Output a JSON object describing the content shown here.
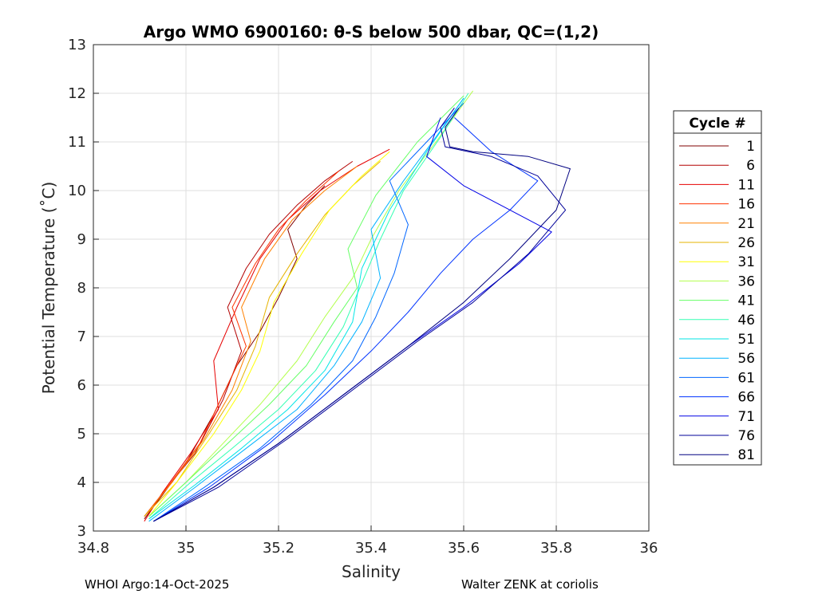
{
  "chart_data": {
    "type": "line",
    "title": "Argo WMO 6900160: θ-S below 500 dbar,  QC=(1,2)",
    "xlabel": "Salinity",
    "ylabel": "Potential Temperature (˚C)",
    "xlim": [
      34.8,
      36
    ],
    "ylim": [
      3,
      13
    ],
    "xticks": [
      34.8,
      35,
      35.2,
      35.4,
      35.6,
      35.8,
      36
    ],
    "yticks": [
      3,
      4,
      5,
      6,
      7,
      8,
      9,
      10,
      11,
      12,
      13
    ],
    "xtick_labels": [
      "34.8",
      "35",
      "35.2",
      "35.4",
      "35.6",
      "35.8",
      "36"
    ],
    "ytick_labels": [
      "3",
      "4",
      "5",
      "6",
      "7",
      "8",
      "9",
      "10",
      "11",
      "12",
      "13"
    ],
    "grid": true,
    "legend": {
      "title": "Cycle #",
      "position": "outside-right",
      "entries": [
        "1",
        "6",
        "11",
        "16",
        "21",
        "26",
        "31",
        "36",
        "41",
        "46",
        "51",
        "56",
        "61",
        "66",
        "71",
        "76",
        "81"
      ],
      "colors": [
        "#800000",
        "#b30000",
        "#e60000",
        "#ff3300",
        "#ff8000",
        "#e6b300",
        "#ffff00",
        "#b3ff4d",
        "#66ff66",
        "#33ffb3",
        "#00e6e6",
        "#00b3ff",
        "#0066ff",
        "#0033ff",
        "#0000e6",
        "#000099",
        "#000080"
      ]
    },
    "series": [
      {
        "name": "1",
        "color": "#800000",
        "x": [
          34.91,
          34.95,
          35.0,
          35.06,
          35.11,
          35.16,
          35.2,
          35.24,
          35.22,
          35.26,
          35.3
        ],
        "y": [
          3.25,
          3.75,
          4.4,
          5.4,
          6.4,
          7.1,
          7.8,
          8.6,
          9.2,
          9.7,
          10.1
        ]
      },
      {
        "name": "6",
        "color": "#b30000",
        "x": [
          34.91,
          34.96,
          35.02,
          35.08,
          35.12,
          35.09,
          35.13,
          35.18,
          35.24,
          35.3,
          35.36
        ],
        "y": [
          3.3,
          3.9,
          4.6,
          5.7,
          6.7,
          7.6,
          8.4,
          9.1,
          9.7,
          10.2,
          10.6
        ]
      },
      {
        "name": "11",
        "color": "#e60000",
        "x": [
          34.91,
          34.95,
          35.01,
          35.07,
          35.06,
          35.11,
          35.16,
          35.22,
          35.29,
          35.37,
          35.44
        ],
        "y": [
          3.2,
          3.8,
          4.6,
          5.5,
          6.5,
          7.6,
          8.6,
          9.4,
          10.0,
          10.5,
          10.85
        ]
      },
      {
        "name": "16",
        "color": "#ff3300",
        "x": [
          34.91,
          34.96,
          35.03,
          35.08,
          35.13,
          35.1,
          35.15,
          35.2,
          35.26,
          35.33
        ],
        "y": [
          3.3,
          3.9,
          4.8,
          5.8,
          6.8,
          7.6,
          8.5,
          9.2,
          9.8,
          10.4
        ]
      },
      {
        "name": "21",
        "color": "#ff8000",
        "x": [
          34.91,
          34.97,
          35.04,
          35.1,
          35.14,
          35.12,
          35.17,
          35.23,
          35.3,
          35.37
        ],
        "y": [
          3.3,
          4.0,
          4.9,
          5.9,
          6.9,
          7.6,
          8.6,
          9.4,
          10.0,
          10.5
        ]
      },
      {
        "name": "26",
        "color": "#e6b300",
        "x": [
          34.91,
          34.98,
          35.05,
          35.11,
          35.15,
          35.18,
          35.24,
          35.3,
          35.36,
          35.42
        ],
        "y": [
          3.3,
          4.0,
          5.0,
          5.9,
          6.8,
          7.8,
          8.7,
          9.5,
          10.1,
          10.6
        ]
      },
      {
        "name": "31",
        "color": "#ffff00",
        "x": [
          34.92,
          34.98,
          35.06,
          35.12,
          35.16,
          35.19,
          35.25,
          35.31,
          35.38,
          35.44
        ],
        "y": [
          3.3,
          4.0,
          5.0,
          5.9,
          6.7,
          7.7,
          8.7,
          9.6,
          10.3,
          10.8
        ]
      },
      {
        "name": "36",
        "color": "#b3ff4d",
        "x": [
          34.92,
          35.0,
          35.08,
          35.16,
          35.24,
          35.3,
          35.36,
          35.4,
          35.46,
          35.54,
          35.62
        ],
        "y": [
          3.3,
          4.0,
          4.8,
          5.6,
          6.5,
          7.4,
          8.2,
          9.0,
          10.0,
          11.0,
          12.05
        ]
      },
      {
        "name": "41",
        "color": "#66ff66",
        "x": [
          34.92,
          35.0,
          35.09,
          35.18,
          35.26,
          35.32,
          35.37,
          35.35,
          35.41,
          35.5,
          35.6
        ],
        "y": [
          3.3,
          4.0,
          4.8,
          5.6,
          6.4,
          7.3,
          8.0,
          8.8,
          9.9,
          11.0,
          11.95
        ]
      },
      {
        "name": "46",
        "color": "#33ffb3",
        "x": [
          34.92,
          35.01,
          35.1,
          35.2,
          35.28,
          35.34,
          35.38,
          35.42,
          35.47,
          35.55,
          35.61
        ],
        "y": [
          3.25,
          4.0,
          4.7,
          5.5,
          6.3,
          7.2,
          8.1,
          9.0,
          10.0,
          11.1,
          12.0
        ]
      },
      {
        "name": "51",
        "color": "#00e6e6",
        "x": [
          34.92,
          35.02,
          35.12,
          35.22,
          35.3,
          35.36,
          35.38,
          35.44,
          35.52,
          35.6
        ],
        "y": [
          3.25,
          3.95,
          4.7,
          5.5,
          6.3,
          7.3,
          8.4,
          9.6,
          10.8,
          11.9
        ]
      },
      {
        "name": "56",
        "color": "#00b3ff",
        "x": [
          34.92,
          35.02,
          35.13,
          35.24,
          35.32,
          35.38,
          35.42,
          35.4,
          35.47,
          35.54,
          35.6
        ],
        "y": [
          3.2,
          3.9,
          4.7,
          5.5,
          6.4,
          7.3,
          8.2,
          9.2,
          10.2,
          11.1,
          11.9
        ]
      },
      {
        "name": "61",
        "color": "#0066ff",
        "x": [
          34.93,
          35.04,
          35.16,
          35.27,
          35.36,
          35.41,
          35.45,
          35.48,
          35.44,
          35.52,
          35.6
        ],
        "y": [
          3.2,
          3.9,
          4.7,
          5.6,
          6.5,
          7.4,
          8.3,
          9.3,
          10.2,
          11.0,
          11.8
        ]
      },
      {
        "name": "66",
        "color": "#0033ff",
        "x": [
          34.93,
          35.05,
          35.18,
          35.3,
          35.4,
          35.48,
          35.55,
          35.62,
          35.7,
          35.76,
          35.66,
          35.58
        ],
        "y": [
          3.2,
          3.9,
          4.8,
          5.8,
          6.7,
          7.5,
          8.3,
          9.0,
          9.6,
          10.2,
          10.8,
          11.5
        ]
      },
      {
        "name": "71",
        "color": "#0000e6",
        "x": [
          34.93,
          35.06,
          35.2,
          35.34,
          35.48,
          35.6,
          35.72,
          35.79,
          35.7,
          35.6,
          35.52,
          35.55
        ],
        "y": [
          3.2,
          3.9,
          4.8,
          5.8,
          6.8,
          7.6,
          8.5,
          9.15,
          9.6,
          10.1,
          10.7,
          11.5
        ]
      },
      {
        "name": "76",
        "color": "#000099",
        "x": [
          34.93,
          35.07,
          35.22,
          35.36,
          35.5,
          35.62,
          35.74,
          35.82,
          35.76,
          35.66,
          35.56,
          35.55,
          35.58
        ],
        "y": [
          3.2,
          3.9,
          4.9,
          5.9,
          6.9,
          7.7,
          8.7,
          9.6,
          10.3,
          10.7,
          10.9,
          11.3,
          11.7
        ]
      },
      {
        "name": "81",
        "color": "#000080",
        "x": [
          34.93,
          35.06,
          35.2,
          35.34,
          35.48,
          35.6,
          35.7,
          35.8,
          35.83,
          35.74,
          35.62,
          35.57,
          35.56,
          35.59
        ],
        "y": [
          3.2,
          3.9,
          4.8,
          5.8,
          6.8,
          7.7,
          8.6,
          9.6,
          10.45,
          10.7,
          10.8,
          10.9,
          11.3,
          11.7
        ]
      }
    ]
  },
  "footer": {
    "left": "WHOI Argo:14-Oct-2025",
    "right": "Walter ZENK at coriolis"
  }
}
